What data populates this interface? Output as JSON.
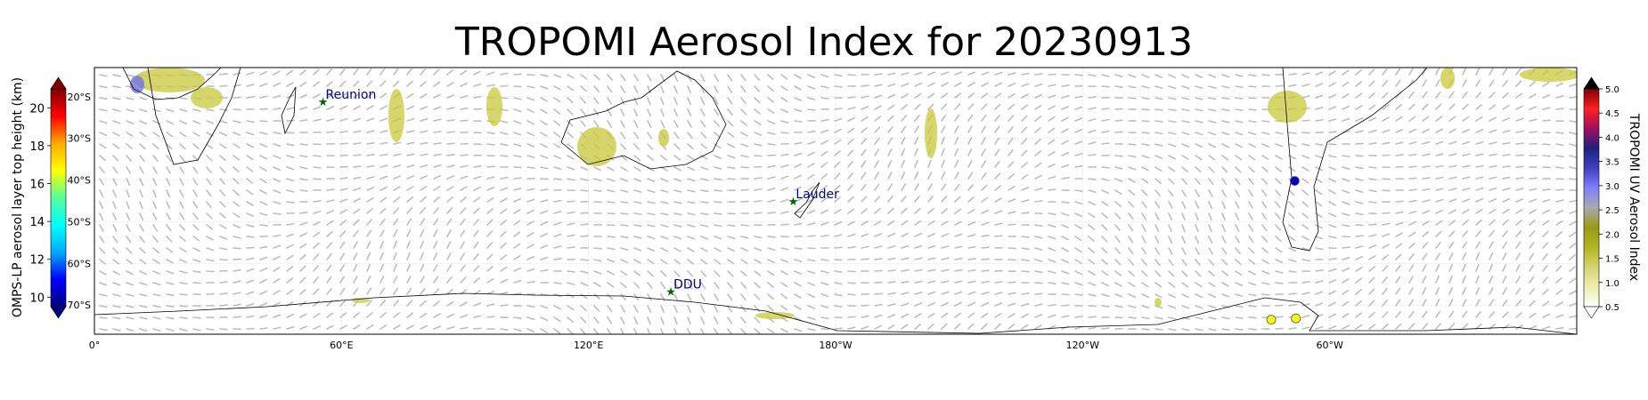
{
  "title": "TROPOMI Aerosol Index for 20230913",
  "map": {
    "lon_labels": [
      "0°",
      "60°E",
      "120°E",
      "180°W",
      "120°W",
      "60°W"
    ],
    "lat_labels": [
      "20°S",
      "30°S",
      "40°S",
      "50°S",
      "60°S",
      "70°S"
    ],
    "stations": [
      {
        "name": "Reunion",
        "lon": 55.5,
        "lat": -21.1
      },
      {
        "name": "Lauder",
        "lon": 169.7,
        "lat": -45.0
      },
      {
        "name": "DDU",
        "lon": 140.0,
        "lat": -66.7
      }
    ],
    "omps_points": [
      {
        "lon": 291.5,
        "lat": -40.2,
        "height_km": 10.3
      },
      {
        "lon": 285.8,
        "lat": -73.5,
        "height_km": 16.6
      },
      {
        "lon": 291.8,
        "lat": -73.2,
        "height_km": 16.6
      }
    ]
  },
  "left_colorbar": {
    "label": "OMPS-LP aerosol layer top height (km)",
    "ticks": [
      "10",
      "12",
      "14",
      "16",
      "18",
      "20"
    ],
    "min": 9.5,
    "max": 21,
    "colors": [
      "#00007f",
      "#0000ff",
      "#00aaff",
      "#00ffff",
      "#55ff9f",
      "#ffff00",
      "#ffaa00",
      "#ff0000",
      "#7f0000"
    ]
  },
  "right_colorbar": {
    "label": "TROPOMI UV Aerosol Index",
    "ticks": [
      "0.5",
      "1.0",
      "1.5",
      "2.0",
      "2.5",
      "3.0",
      "3.5",
      "4.0",
      "4.5",
      "5.0"
    ],
    "min": 0.5,
    "max": 5.0,
    "colors": [
      "#ffffff",
      "#eeeeb0",
      "#d4d470",
      "#b4b420",
      "#9a9a10",
      "#aaaaaa",
      "#8080ff",
      "#4040c0",
      "#202080",
      "#a01060",
      "#ff2020",
      "#800000"
    ]
  }
}
